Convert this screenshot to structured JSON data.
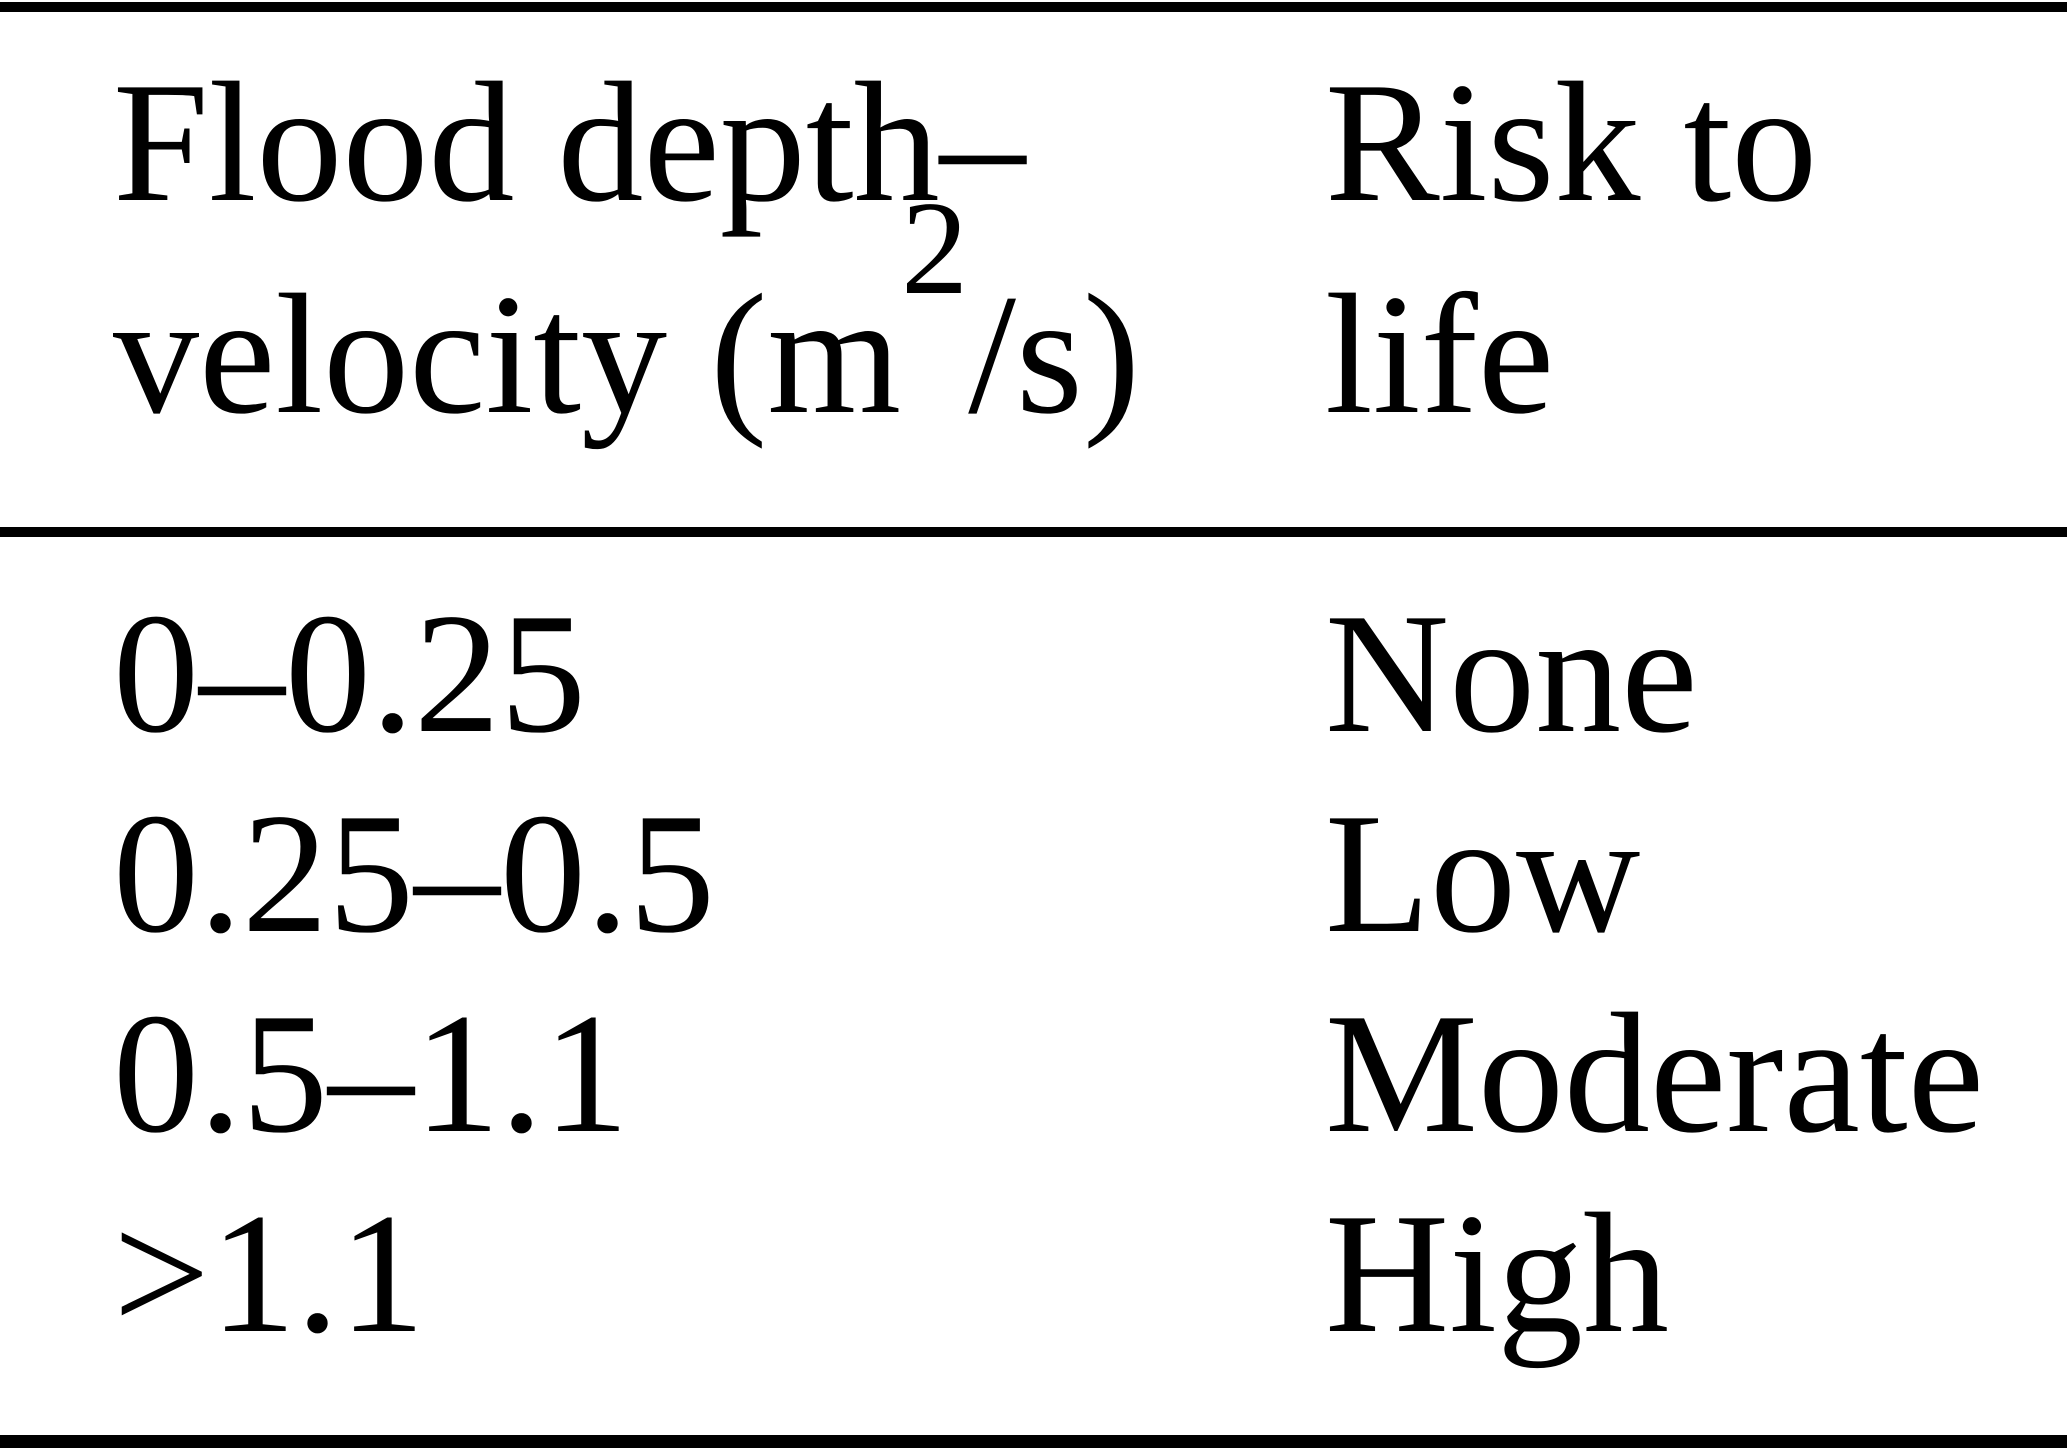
{
  "figure": {
    "kind": "paper-table"
  },
  "table": {
    "header": {
      "col1_full": "Flood depth–velocity (m²/s)",
      "col1_line1": "Flood depth–",
      "col1_line2_prefix": "velocity (m",
      "col1_superscript": "2",
      "col1_line2_suffix": "/s)",
      "col2": "Risk to life"
    },
    "rows": [
      {
        "depth_velocity": "0–0.25",
        "risk": "None"
      },
      {
        "depth_velocity": "0.25–0.5",
        "risk": "Low"
      },
      {
        "depth_velocity": "0.5–1.1",
        "risk": "Moderate"
      },
      {
        "depth_velocity": ">1.1",
        "risk": "High"
      }
    ]
  },
  "colors": {
    "text": "#000000",
    "background": "#ffffff",
    "rule": "#000000"
  }
}
